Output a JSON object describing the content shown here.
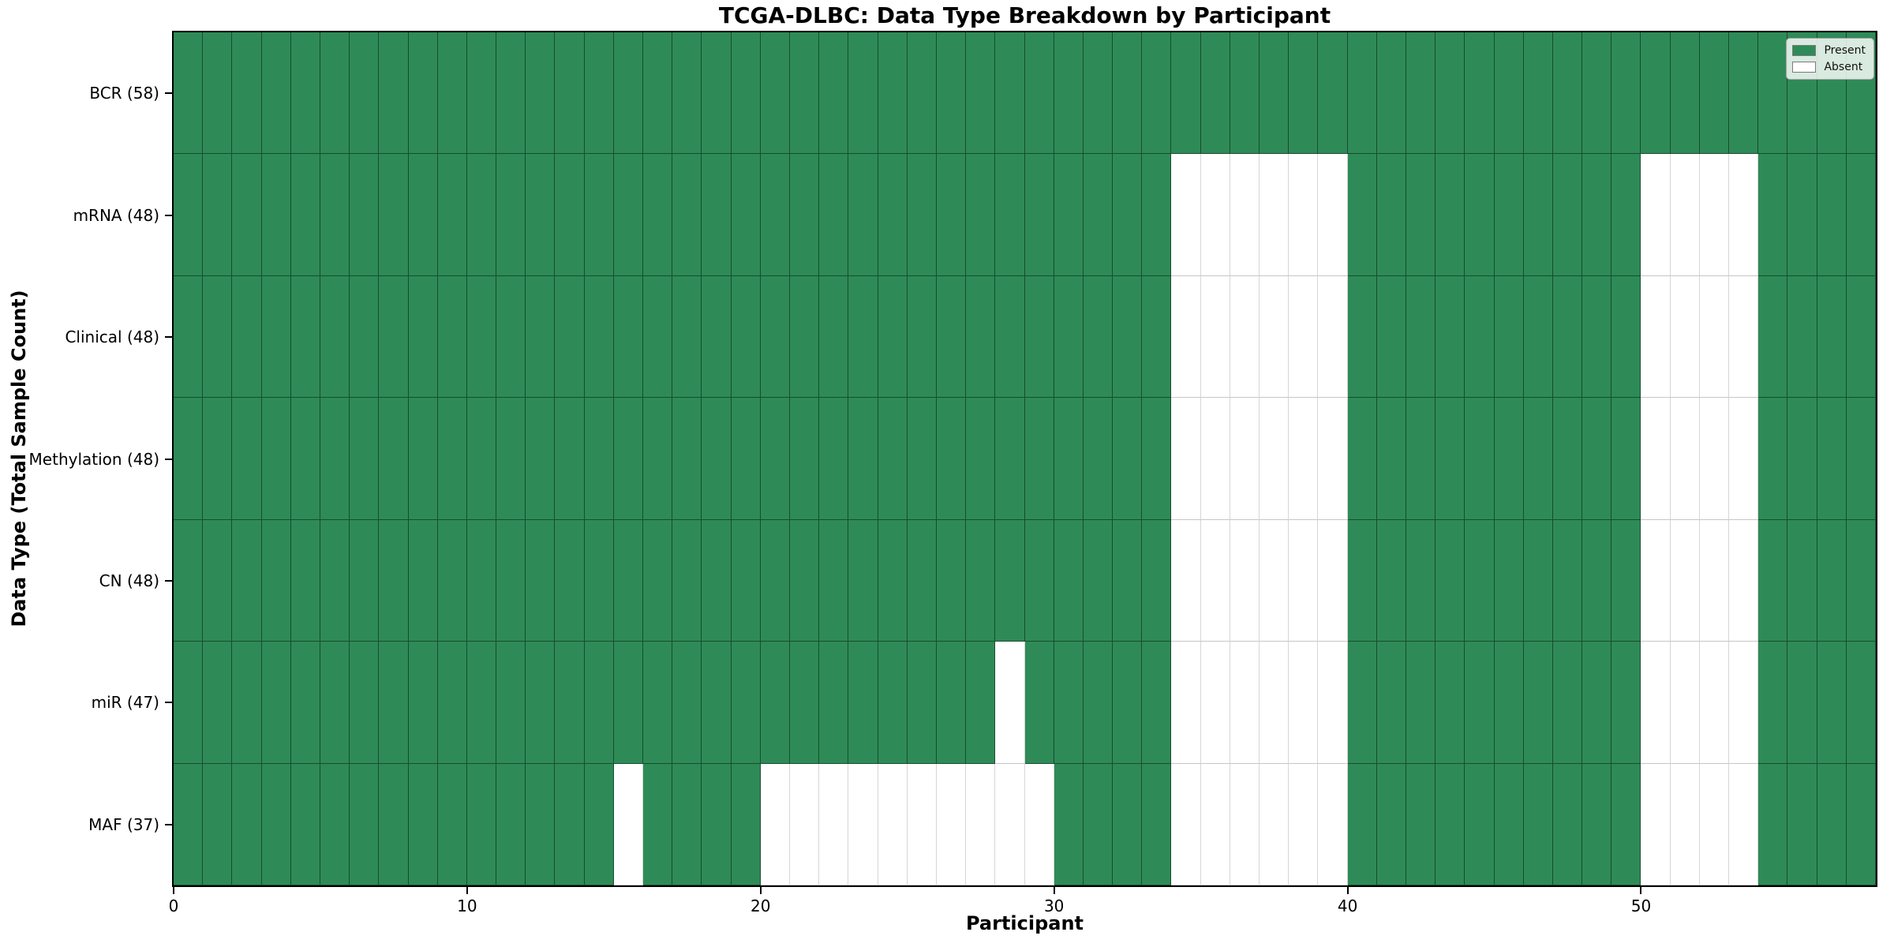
{
  "chart_data": {
    "type": "heatmap",
    "title": "TCGA-DLBC: Data Type Breakdown by Participant",
    "xlabel": "Participant",
    "ylabel": "Data Type (Total Sample Count)",
    "x_ticks": [
      0,
      10,
      20,
      30,
      40,
      50
    ],
    "x_tick_labels": [
      "0",
      "10",
      "20",
      "30",
      "40",
      "50"
    ],
    "x_range": [
      0,
      58
    ],
    "n_participants": 58,
    "grid": true,
    "legend_position": "upper right",
    "colors": {
      "present": "#2e8b57",
      "absent": "#ffffff"
    },
    "legend": [
      {
        "label": "Present",
        "color": "#2e8b57"
      },
      {
        "label": "Absent",
        "color": "#ffffff"
      }
    ],
    "rows": [
      {
        "label": "BCR (58)",
        "data_type": "BCR",
        "present_count": 58,
        "absent_participants": []
      },
      {
        "label": "mRNA (48)",
        "data_type": "mRNA",
        "present_count": 48,
        "absent_participants": [
          34,
          35,
          36,
          37,
          38,
          39,
          50,
          51,
          52,
          53
        ]
      },
      {
        "label": "Clinical (48)",
        "data_type": "Clinical",
        "present_count": 48,
        "absent_participants": [
          34,
          35,
          36,
          37,
          38,
          39,
          50,
          51,
          52,
          53
        ]
      },
      {
        "label": "Methylation (48)",
        "data_type": "Methylation",
        "present_count": 48,
        "absent_participants": [
          34,
          35,
          36,
          37,
          38,
          39,
          50,
          51,
          52,
          53
        ]
      },
      {
        "label": "CN (48)",
        "data_type": "CN",
        "present_count": 48,
        "absent_participants": [
          34,
          35,
          36,
          37,
          38,
          39,
          50,
          51,
          52,
          53
        ]
      },
      {
        "label": "miR (47)",
        "data_type": "miR",
        "present_count": 47,
        "absent_participants": [
          28,
          34,
          35,
          36,
          37,
          38,
          39,
          50,
          51,
          52,
          53
        ]
      },
      {
        "label": "MAF (37)",
        "data_type": "MAF",
        "present_count": 37,
        "absent_participants": [
          15,
          20,
          21,
          22,
          23,
          24,
          25,
          26,
          27,
          28,
          29,
          34,
          35,
          36,
          37,
          38,
          39,
          50,
          51,
          52,
          53
        ]
      }
    ]
  }
}
